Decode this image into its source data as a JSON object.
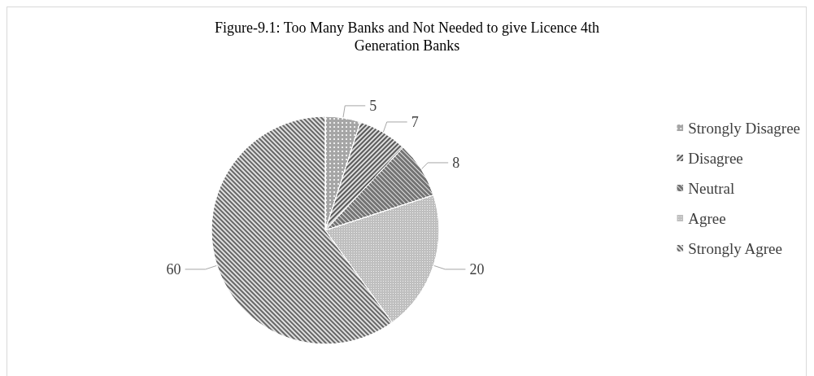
{
  "chart_data": {
    "type": "pie",
    "title": "Figure-9.1: Too Many Banks and Not Needed to give Licence 4th\nGeneration Banks",
    "categories": [
      "Strongly Disagree",
      "Disagree",
      "Neutral",
      "Agree",
      "Strongly Agree"
    ],
    "values": [
      5,
      7,
      8,
      20,
      60
    ],
    "colors": [
      "#a6a6a6",
      "#595959",
      "#737373",
      "#bfbfbf",
      "#666666"
    ],
    "data_labels": true,
    "legend": "right"
  }
}
